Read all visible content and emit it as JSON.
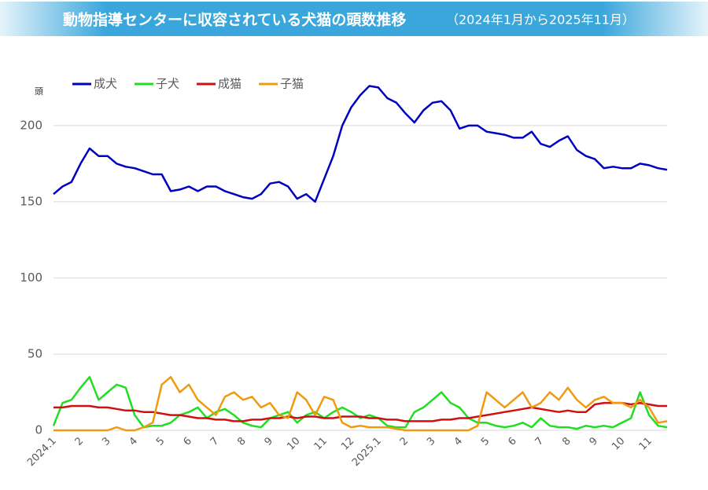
{
  "chart_data": {
    "type": "line",
    "title": "動物指導センターに収容されている犬猫の頭数推移",
    "subtitle": "（2024年1月から2025年11月）",
    "y_label": "頭",
    "categories": [
      "2024.1",
      null,
      null,
      "2",
      null,
      null,
      "3",
      null,
      null,
      "4",
      null,
      null,
      "5",
      null,
      null,
      "6",
      null,
      null,
      "7",
      null,
      null,
      "8",
      null,
      null,
      "9",
      null,
      null,
      "10",
      null,
      null,
      "11",
      null,
      null,
      "12",
      null,
      null,
      "2025.1",
      null,
      null,
      "2",
      null,
      null,
      "3",
      null,
      null,
      "4",
      null,
      null,
      "5",
      null,
      null,
      "6",
      null,
      null,
      "7",
      null,
      null,
      "8",
      null,
      null,
      "9",
      null,
      null,
      "10",
      null,
      null,
      "11",
      null,
      null
    ],
    "series": [
      {
        "name": "成犬",
        "color": "#0000c0",
        "values": [
          155,
          160,
          163,
          175,
          185,
          180,
          180,
          175,
          173,
          172,
          170,
          168,
          168,
          157,
          158,
          160,
          157,
          160,
          160,
          157,
          155,
          153,
          152,
          155,
          162,
          163,
          160,
          152,
          155,
          150,
          165,
          180,
          200,
          212,
          220,
          226,
          225,
          218,
          215,
          208,
          202,
          210,
          215,
          216,
          210,
          198,
          200,
          200,
          196,
          195,
          194,
          192,
          192,
          196,
          188,
          186,
          190,
          193,
          184,
          180,
          178,
          172,
          173,
          172,
          172,
          175,
          174,
          172,
          171
        ]
      },
      {
        "name": "子犬",
        "color": "#22dd22",
        "values": [
          3,
          18,
          20,
          28,
          35,
          20,
          25,
          30,
          28,
          10,
          2,
          3,
          3,
          5,
          10,
          12,
          15,
          8,
          12,
          14,
          10,
          5,
          3,
          2,
          8,
          10,
          12,
          5,
          10,
          12,
          8,
          12,
          15,
          12,
          8,
          10,
          8,
          3,
          2,
          2,
          12,
          15,
          20,
          25,
          18,
          15,
          8,
          5,
          5,
          3,
          2,
          3,
          5,
          2,
          8,
          3,
          2,
          2,
          1,
          3,
          2,
          3,
          2,
          5,
          8,
          25,
          10,
          3,
          2
        ]
      },
      {
        "name": "成猫",
        "color": "#d01010",
        "values": [
          15,
          15,
          16,
          16,
          16,
          15,
          15,
          14,
          13,
          13,
          12,
          12,
          11,
          10,
          10,
          9,
          8,
          8,
          7,
          7,
          6,
          6,
          7,
          7,
          8,
          8,
          9,
          8,
          9,
          9,
          8,
          8,
          9,
          9,
          9,
          8,
          8,
          7,
          7,
          6,
          6,
          6,
          6,
          7,
          7,
          8,
          8,
          9,
          10,
          11,
          12,
          13,
          14,
          15,
          14,
          13,
          12,
          13,
          12,
          12,
          17,
          18,
          18,
          18,
          17,
          18,
          17,
          16,
          16
        ]
      },
      {
        "name": "子猫",
        "color": "#f09a10",
        "values": [
          0,
          0,
          0,
          0,
          0,
          0,
          0,
          2,
          0,
          0,
          2,
          5,
          30,
          35,
          25,
          30,
          20,
          15,
          10,
          22,
          25,
          20,
          22,
          15,
          18,
          10,
          8,
          25,
          20,
          10,
          22,
          20,
          5,
          2,
          3,
          2,
          2,
          2,
          1,
          0,
          0,
          0,
          0,
          0,
          0,
          0,
          0,
          3,
          25,
          20,
          15,
          20,
          25,
          15,
          18,
          25,
          20,
          28,
          20,
          15,
          20,
          22,
          18,
          18,
          15,
          20,
          15,
          5,
          6
        ]
      }
    ],
    "ylim": [
      0,
      235
    ],
    "yticks": [
      0,
      50,
      100,
      150,
      200
    ],
    "grid": true,
    "legend": "top-left"
  }
}
